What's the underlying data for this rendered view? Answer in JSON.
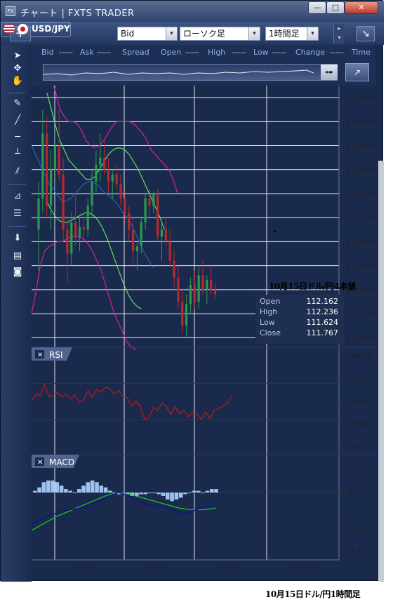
{
  "window": {
    "title": "チャート | FXTS TRADER",
    "app_icon": "FX",
    "minimize": "—",
    "maximize": "□",
    "close": "✕"
  },
  "toolbar": {
    "add_label": "+",
    "symbol": "USD/JPY",
    "price_type": "Bid",
    "chart_type": "ローソク足",
    "timeframe": "1時間足",
    "dropdown_icon": "▾",
    "scroll_up": "▸",
    "scroll_down": "▾",
    "corner": "↘"
  },
  "infobar": {
    "fields": [
      {
        "label": "Bid",
        "value": "-----"
      },
      {
        "label": "Ask",
        "value": "-----"
      },
      {
        "label": "Spread",
        "value": ""
      },
      {
        "label": "Open",
        "value": "-----"
      },
      {
        "label": "High",
        "value": "-----"
      },
      {
        "label": "Low",
        "value": "-----"
      },
      {
        "label": "Change",
        "value": "-----"
      },
      {
        "label": "Time",
        "value": ""
      }
    ],
    "overview_nav_left": "◂◂",
    "overview_nav_right": "▸",
    "zoom_label": "↗"
  },
  "sidebar": {
    "tools": [
      "cursor-icon",
      "crosshair-icon",
      "hand-icon",
      "pencil-icon",
      "trendline-icon",
      "horizontal-line-icon",
      "vertical-line-icon",
      "parallel-line-icon",
      "fibonacci-fan-icon",
      "fibonacci-retracement-icon",
      "arrow-down-icon",
      "list-icon",
      "camera-icon"
    ]
  },
  "ohlc_popup": {
    "title": "10月15日ドル/円4本値",
    "rows": [
      {
        "label": "Open",
        "value": "112.162"
      },
      {
        "label": "High",
        "value": "112.236"
      },
      {
        "label": "Low",
        "value": "111.624"
      },
      {
        "label": "Close",
        "value": "111.767"
      }
    ]
  },
  "panels": {
    "rsi_label": "RSI",
    "macd_label": "MACD",
    "close_icon": "✕"
  },
  "axes": {
    "price_ticks": [
      "112.600",
      "112.500",
      "112.400",
      "112.300",
      "112.200",
      "112.100",
      "112.000",
      "111.900",
      "111.800",
      "111.700",
      "111.600"
    ],
    "rsi_ticks": [
      "100.00",
      "75.00",
      "50.00",
      "25.00",
      "0.00"
    ],
    "macd_ticks": [
      "0.11",
      "0.00",
      "-0.11",
      "-0.22",
      "-0.33"
    ],
    "time_ticks": [
      "12:00",
      "12:00",
      "12:00",
      "12:00"
    ]
  },
  "caption": "10月15日ドル/円1時間足",
  "colors": {
    "bull": "#2a9a4e",
    "bear": "#b82830",
    "bollinger_outer": "#d4229a",
    "bollinger_inner": "#5fe05f",
    "ma": "#1a66c0",
    "rsi": "#c01818",
    "macd_line": "#101090",
    "signal_line": "#22c022",
    "histogram": "#9ec4ee"
  },
  "chart_data": {
    "type": "candlestick",
    "price_range": [
      111.56,
      112.65
    ],
    "candles": [
      [
        112.05,
        112.25,
        111.88,
        112.18
      ],
      [
        112.18,
        112.55,
        112.12,
        112.45
      ],
      [
        112.45,
        112.52,
        112.1,
        112.15
      ],
      [
        112.15,
        112.38,
        112.05,
        112.3
      ],
      [
        112.3,
        112.48,
        112.22,
        112.4
      ],
      [
        112.4,
        112.55,
        112.25,
        112.28
      ],
      [
        112.28,
        112.35,
        112.0,
        112.05
      ],
      [
        112.05,
        112.1,
        111.83,
        111.95
      ],
      [
        111.95,
        112.12,
        111.9,
        112.08
      ],
      [
        112.08,
        112.2,
        111.98,
        112.02
      ],
      [
        112.02,
        112.1,
        111.96,
        112.06
      ],
      [
        112.06,
        112.12,
        112.0,
        112.05
      ],
      [
        112.05,
        112.18,
        112.02,
        112.15
      ],
      [
        112.15,
        112.3,
        112.1,
        112.25
      ],
      [
        112.25,
        112.38,
        112.2,
        112.32
      ],
      [
        112.32,
        112.45,
        112.25,
        112.35
      ],
      [
        112.35,
        112.42,
        112.28,
        112.3
      ],
      [
        112.3,
        112.35,
        112.2,
        112.25
      ],
      [
        112.25,
        112.3,
        112.18,
        112.28
      ],
      [
        112.28,
        112.32,
        112.22,
        112.24
      ],
      [
        112.24,
        112.28,
        112.15,
        112.18
      ],
      [
        112.18,
        112.22,
        112.08,
        112.12
      ],
      [
        112.12,
        112.15,
        112.0,
        112.05
      ],
      [
        112.05,
        112.1,
        111.9,
        111.96
      ],
      [
        111.96,
        112.0,
        111.88,
        111.98
      ],
      [
        111.98,
        112.1,
        111.95,
        112.08
      ],
      [
        112.08,
        112.2,
        112.05,
        112.18
      ],
      [
        112.18,
        112.22,
        112.1,
        112.15
      ],
      [
        112.15,
        112.21,
        112.12,
        112.2
      ],
      [
        112.2,
        112.22,
        112.0,
        112.02
      ],
      [
        112.02,
        112.08,
        111.92,
        112.05
      ],
      [
        112.05,
        112.1,
        111.98,
        112.0
      ],
      [
        112.0,
        112.05,
        111.9,
        111.92
      ],
      [
        111.92,
        111.96,
        111.8,
        111.85
      ],
      [
        111.85,
        111.9,
        111.72,
        111.75
      ],
      [
        111.75,
        111.8,
        111.62,
        111.65
      ],
      [
        111.65,
        111.78,
        111.6,
        111.74
      ],
      [
        111.74,
        111.85,
        111.7,
        111.82
      ],
      [
        111.82,
        111.88,
        111.72,
        111.75
      ],
      [
        111.75,
        111.9,
        111.72,
        111.86
      ],
      [
        111.86,
        111.92,
        111.78,
        111.8
      ],
      [
        111.8,
        111.86,
        111.74,
        111.84
      ],
      [
        111.84,
        111.9,
        111.78,
        111.8
      ],
      [
        111.8,
        111.83,
        111.76,
        111.78
      ]
    ],
    "bollinger_upper": [
      112.7,
      112.68,
      112.62,
      112.55,
      112.52,
      112.5,
      112.5,
      112.49,
      112.46,
      112.42,
      112.4,
      112.39,
      112.4,
      112.42,
      112.45,
      112.48,
      112.5,
      112.5,
      112.5,
      112.5,
      112.49,
      112.47,
      112.45,
      112.42,
      112.38,
      112.36,
      112.34,
      112.32,
      112.3,
      112.26,
      112.2
    ],
    "bollinger_mid_upper": [
      112.62,
      112.55,
      112.48,
      112.42,
      112.38,
      112.34,
      112.32,
      112.3,
      112.28,
      112.26,
      112.26,
      112.27,
      112.3,
      112.33,
      112.36,
      112.38,
      112.39,
      112.39,
      112.38,
      112.36,
      112.33,
      112.3,
      112.26,
      112.22,
      112.18,
      112.14,
      112.1,
      112.05
    ],
    "ma": [
      112.4,
      112.36,
      112.32,
      112.28,
      112.24,
      112.22,
      112.19,
      112.17,
      112.17,
      112.18,
      112.2,
      112.22,
      112.24,
      112.25,
      112.25,
      112.24,
      112.22,
      112.2,
      112.19,
      112.17,
      112.15,
      112.12,
      112.1,
      112.07,
      112.03,
      111.99,
      111.95,
      111.92,
      111.89
    ],
    "bollinger_mid_lower": [
      112.18,
      112.14,
      112.11,
      112.09,
      112.08,
      112.08,
      112.09,
      112.1,
      112.11,
      112.12,
      112.12,
      112.11,
      112.09,
      112.06,
      112.02,
      111.97,
      111.92,
      111.87,
      111.82,
      111.78,
      111.75,
      111.73,
      111.72
    ],
    "bollinger_lower": [
      111.7,
      111.79,
      111.9,
      111.96,
      111.98,
      111.99,
      112.0,
      112.0,
      112.01,
      112.02,
      112.02,
      112.02,
      112.01,
      111.99,
      111.96,
      111.92,
      111.88,
      111.82,
      111.76,
      111.7,
      111.66,
      111.62,
      111.58,
      111.56,
      111.55
    ],
    "rsi": [
      50,
      58,
      56,
      69,
      55,
      57,
      60,
      55,
      58,
      53,
      57,
      49,
      52,
      62,
      55,
      63,
      60,
      66,
      64,
      58,
      62,
      55,
      54,
      45,
      50,
      44,
      30,
      32,
      43,
      40,
      48,
      44,
      35,
      44,
      36,
      40,
      33,
      38,
      36,
      30,
      38,
      31,
      40,
      42,
      45,
      48,
      56
    ],
    "macd_histogram": [
      0.01,
      0.03,
      0.06,
      0.07,
      0.07,
      0.06,
      0.04,
      0.02,
      0.01,
      0.0,
      0.02,
      0.04,
      0.06,
      0.07,
      0.06,
      0.04,
      0.03,
      0.01,
      0.0,
      -0.01,
      -0.01,
      -0.01,
      -0.02,
      -0.02,
      -0.01,
      -0.01,
      0.0,
      0.0,
      -0.01,
      -0.02,
      -0.04,
      -0.05,
      -0.04,
      -0.03,
      -0.01,
      0.0,
      0.01,
      0.01,
      0.0,
      0.01,
      0.02,
      0.02
    ],
    "macd_line": [
      -0.19,
      -0.15,
      -0.13,
      -0.11,
      -0.1,
      -0.09,
      -0.07,
      -0.05,
      -0.02,
      0.0,
      -0.02,
      -0.05,
      -0.07,
      -0.08,
      -0.09,
      -0.11,
      -0.12,
      -0.1,
      -0.08,
      -0.08
    ],
    "signal_line": [
      -0.22,
      -0.18,
      -0.14,
      -0.11,
      -0.08,
      -0.05,
      -0.02,
      0.0,
      -0.01,
      -0.03,
      -0.05,
      -0.07,
      -0.09,
      -0.1,
      -0.1,
      -0.09
    ]
  }
}
